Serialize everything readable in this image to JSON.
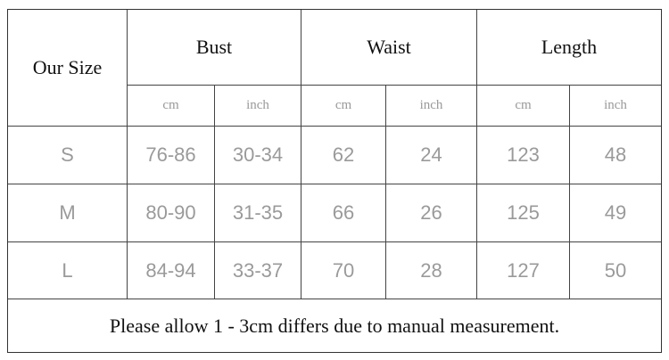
{
  "table": {
    "our_size_label": "Our Size",
    "groups": [
      "Bust",
      "Waist",
      "Length"
    ],
    "units": [
      "cm",
      "inch",
      "cm",
      "inch",
      "cm",
      "inch"
    ],
    "rows": [
      {
        "size": "S",
        "values": [
          "76-86",
          "30-34",
          "62",
          "24",
          "123",
          "48"
        ]
      },
      {
        "size": "M",
        "values": [
          "80-90",
          "31-35",
          "66",
          "26",
          "125",
          "49"
        ]
      },
      {
        "size": "L",
        "values": [
          "84-94",
          "33-37",
          "70",
          "28",
          "127",
          "50"
        ]
      }
    ],
    "note": "Please allow 1 - 3cm differs due to manual measurement."
  }
}
